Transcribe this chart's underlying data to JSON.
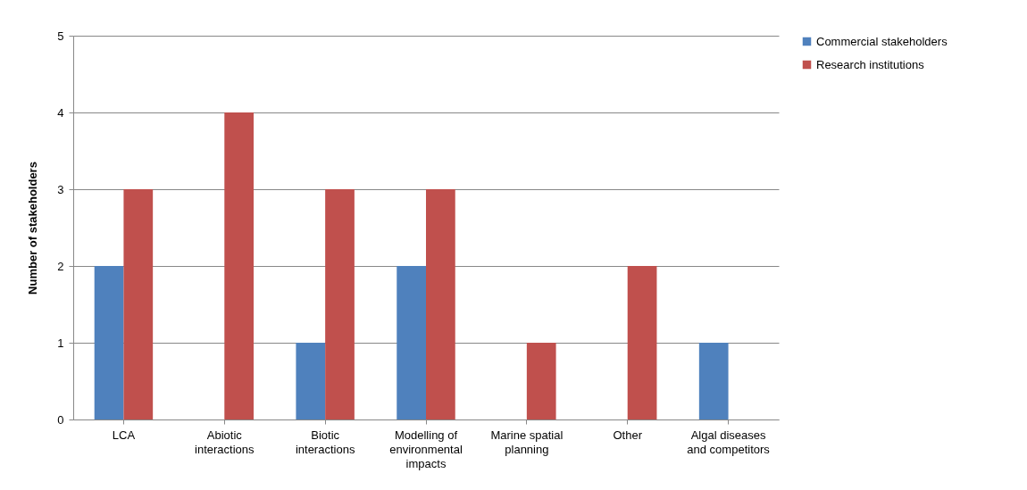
{
  "chart_data": {
    "type": "bar",
    "ylabel": "Number of stakeholders",
    "categories": [
      "LCA",
      "Abiotic interactions",
      "Biotic interactions",
      "Modelling of environmental impacts",
      "Marine spatial planning",
      "Other",
      "Algal diseases and competitors"
    ],
    "series": [
      {
        "name": "Commercial stakeholders",
        "color": "#4f81bd",
        "values": [
          2,
          0,
          1,
          2,
          0,
          0,
          1
        ]
      },
      {
        "name": "Research institutions",
        "color": "#c0504d",
        "values": [
          3,
          4,
          3,
          3,
          1,
          2,
          0
        ]
      }
    ],
    "ylim": [
      0,
      5
    ],
    "yticks": [
      0,
      1,
      2,
      3,
      4,
      5
    ],
    "grid": "y",
    "legend": "right"
  }
}
